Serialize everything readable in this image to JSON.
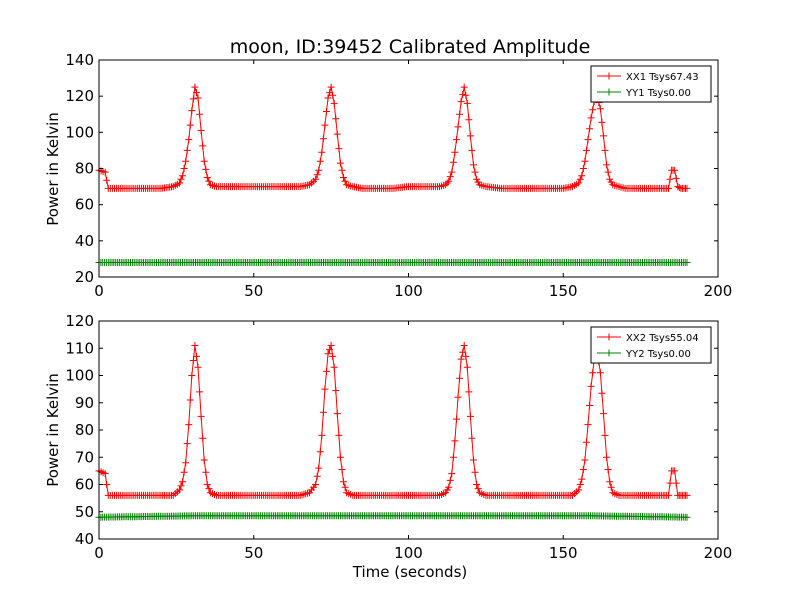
{
  "chart_data": [
    {
      "type": "line",
      "title": "moon, ID:39452 Calibrated Amplitude",
      "xlabel": "",
      "ylabel": "Power in Kelvin",
      "xlim": [
        0,
        200
      ],
      "ylim": [
        20,
        140
      ],
      "xticks": [
        0,
        50,
        100,
        150,
        200
      ],
      "yticks": [
        20,
        40,
        60,
        80,
        100,
        120,
        140
      ],
      "legend_position": "top-right",
      "grid": false,
      "series": [
        {
          "name": "XX1 Tsys67.43",
          "color": "#ff0000",
          "marker": "+",
          "x": [
            0,
            2,
            3,
            5,
            10,
            15,
            20,
            24,
            26,
            27,
            28,
            29,
            30,
            31,
            32,
            33,
            34,
            35,
            36,
            38,
            40,
            45,
            50,
            55,
            60,
            65,
            68,
            70,
            71,
            72,
            73,
            74,
            75,
            76,
            77,
            78,
            79,
            80,
            82,
            85,
            90,
            95,
            100,
            105,
            110,
            112,
            113,
            114,
            115,
            116,
            117,
            118,
            119,
            120,
            121,
            122,
            123,
            125,
            130,
            135,
            140,
            145,
            150,
            153,
            155,
            156,
            157,
            158,
            159,
            160,
            161,
            162,
            163,
            164,
            165,
            166,
            168,
            170,
            175,
            180,
            184,
            185,
            186,
            187,
            188,
            189,
            190
          ],
          "y": [
            79,
            78,
            69,
            69,
            69,
            69,
            69,
            70,
            72,
            76,
            84,
            96,
            112,
            125,
            119,
            101,
            84,
            75,
            71,
            70,
            70,
            70,
            70,
            70,
            70,
            70,
            71,
            74,
            79,
            89,
            104,
            119,
            125,
            116,
            99,
            83,
            75,
            71,
            70,
            69,
            69,
            69,
            70,
            70,
            70,
            71,
            73,
            78,
            89,
            103,
            117,
            125,
            116,
            98,
            82,
            74,
            71,
            70,
            69,
            69,
            69,
            69,
            69,
            70,
            72,
            76,
            84,
            96,
            108,
            117,
            120,
            113,
            98,
            82,
            74,
            71,
            70,
            69,
            69,
            69,
            69,
            79,
            79,
            70,
            69,
            69,
            69
          ]
        },
        {
          "name": "YY1 Tsys0.00",
          "color": "#008000",
          "marker": "+",
          "x": [
            0,
            190
          ],
          "y": [
            28,
            28
          ]
        }
      ]
    },
    {
      "type": "line",
      "title": "",
      "xlabel": "Time (seconds)",
      "ylabel": "Power in Kelvin",
      "xlim": [
        0,
        200
      ],
      "ylim": [
        40,
        120
      ],
      "xticks": [
        0,
        50,
        100,
        150,
        200
      ],
      "yticks": [
        40,
        50,
        60,
        70,
        80,
        90,
        100,
        110,
        120
      ],
      "legend_position": "top-right",
      "grid": false,
      "series": [
        {
          "name": "XX2 Tsys55.04",
          "color": "#ff0000",
          "marker": "+",
          "x": [
            0,
            2,
            3,
            5,
            10,
            15,
            20,
            24,
            26,
            27,
            28,
            29,
            30,
            31,
            32,
            33,
            34,
            35,
            36,
            38,
            40,
            45,
            50,
            55,
            60,
            65,
            68,
            70,
            71,
            72,
            73,
            74,
            75,
            76,
            77,
            78,
            79,
            80,
            82,
            85,
            90,
            95,
            100,
            105,
            110,
            112,
            113,
            114,
            115,
            116,
            117,
            118,
            119,
            120,
            121,
            122,
            123,
            125,
            130,
            135,
            140,
            145,
            150,
            153,
            155,
            156,
            157,
            158,
            159,
            160,
            161,
            162,
            163,
            164,
            165,
            166,
            168,
            170,
            175,
            180,
            184,
            185,
            186,
            187,
            188,
            189,
            190
          ],
          "y": [
            65,
            64,
            56,
            56,
            56,
            56,
            56,
            56,
            58,
            61,
            68,
            82,
            100,
            111,
            103,
            85,
            69,
            60,
            57,
            56,
            56,
            56,
            56,
            56,
            56,
            56,
            57,
            60,
            66,
            78,
            95,
            108,
            111,
            103,
            86,
            70,
            61,
            57,
            56,
            56,
            56,
            56,
            56,
            56,
            56,
            57,
            59,
            64,
            76,
            92,
            106,
            111,
            103,
            85,
            69,
            60,
            57,
            56,
            56,
            56,
            56,
            56,
            56,
            56,
            58,
            62,
            69,
            82,
            96,
            106,
            109,
            101,
            86,
            70,
            61,
            57,
            56,
            56,
            56,
            56,
            56,
            65,
            65,
            56,
            56,
            56,
            56
          ]
        },
        {
          "name": "YY2 Tsys0.00",
          "color": "#008000",
          "marker": "+",
          "x": [
            0,
            30,
            75,
            118,
            160,
            190
          ],
          "y": [
            48,
            48.5,
            48.5,
            48.5,
            48.5,
            48
          ]
        }
      ]
    }
  ]
}
